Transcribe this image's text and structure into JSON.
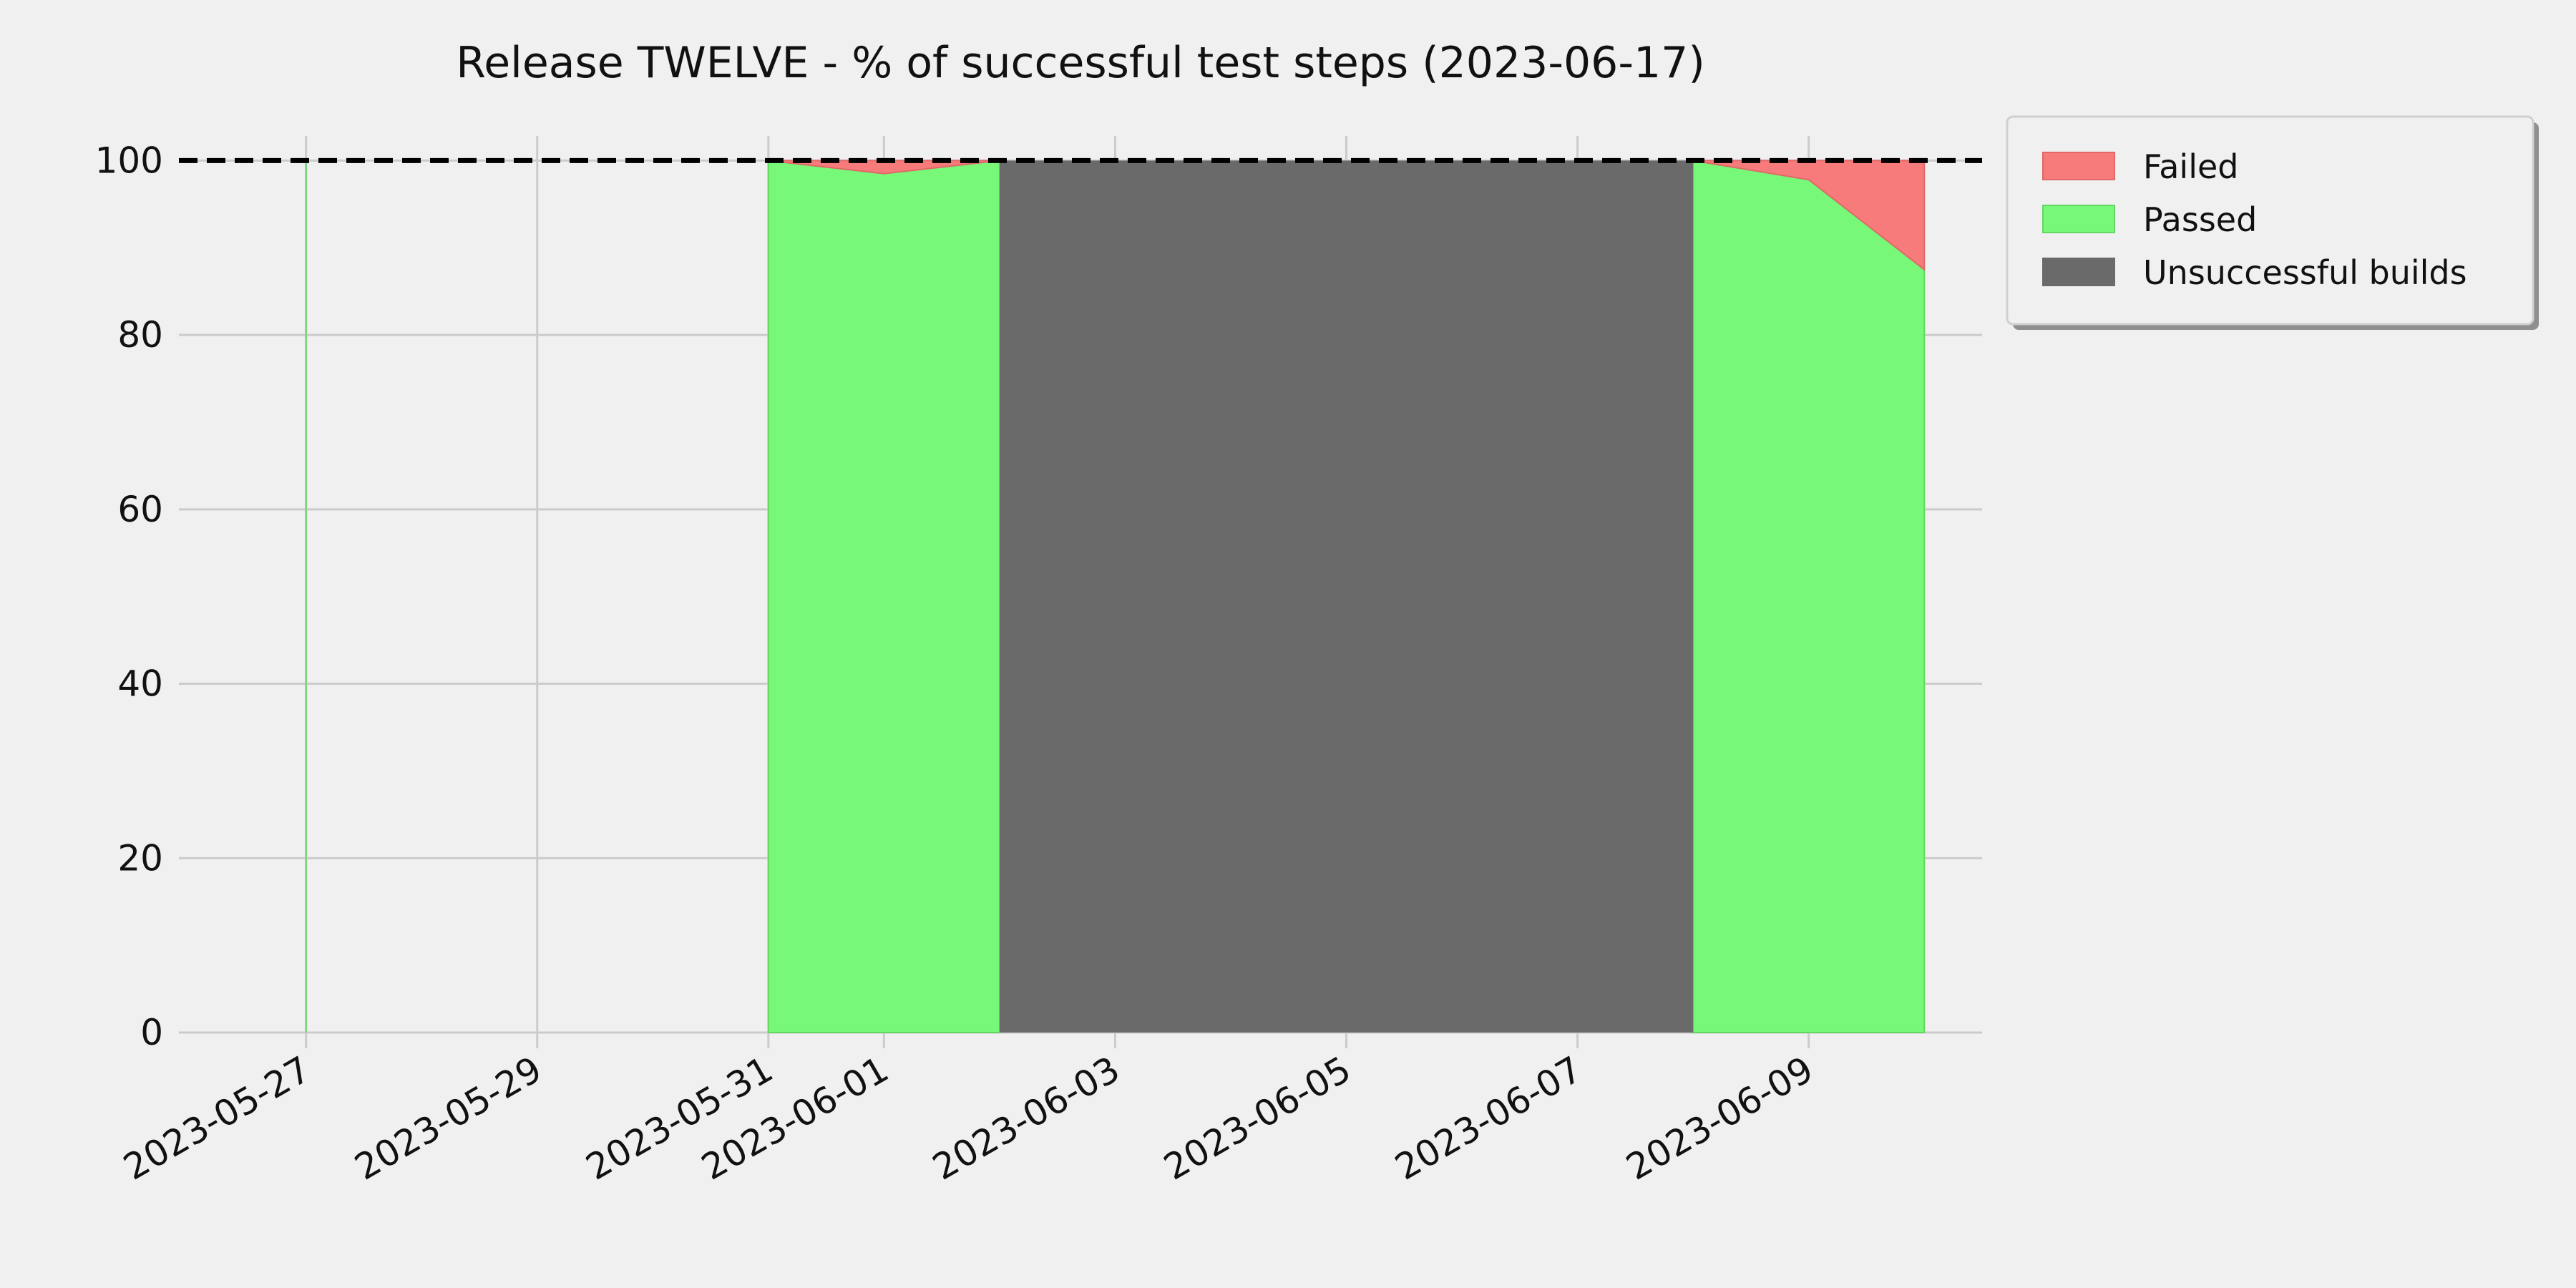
{
  "chart_data": {
    "type": "area",
    "title": "Release TWELVE - % of successful test steps (2023-06-17)",
    "xlabel": "",
    "ylabel": "",
    "ylim": [
      0,
      100
    ],
    "x_ticks": [
      "2023-05-27",
      "2023-05-29",
      "2023-05-31",
      "2023-06-01",
      "2023-06-03",
      "2023-06-05",
      "2023-06-07",
      "2023-06-09"
    ],
    "y_ticks": [
      0,
      20,
      40,
      60,
      80,
      100
    ],
    "grid": true,
    "reference_line": {
      "y": 100,
      "style": "dashed",
      "color": "#000000"
    },
    "legend": {
      "position": "outside-top-right"
    },
    "series": [
      {
        "name": "Failed",
        "color": "#f87b7b",
        "points": [
          {
            "x": "2023-05-27",
            "y": 0
          },
          {
            "x": "2023-05-31",
            "y": 0
          },
          {
            "x": "2023-06-01",
            "y": 1.5
          },
          {
            "x": "2023-06-02",
            "y": 0
          },
          {
            "x": "2023-06-08",
            "y": 0
          },
          {
            "x": "2023-06-09",
            "y": 2.2
          },
          {
            "x": "2023-06-10",
            "y": 12.5
          }
        ]
      },
      {
        "name": "Passed",
        "color": "#78f878",
        "points": [
          {
            "x": "2023-05-27",
            "y": 100
          },
          {
            "x": "2023-05-31",
            "y": 100
          },
          {
            "x": "2023-06-01",
            "y": 98.5
          },
          {
            "x": "2023-06-02",
            "y": 100
          },
          {
            "x": "2023-06-08",
            "y": 100
          },
          {
            "x": "2023-06-09",
            "y": 97.8
          },
          {
            "x": "2023-06-10",
            "y": 87.5
          }
        ]
      },
      {
        "name": "Unsuccessful builds",
        "color": "#6a6a6a",
        "ranges": [
          {
            "start": "2023-06-02",
            "end": "2023-06-08",
            "y": 100
          }
        ]
      }
    ]
  }
}
